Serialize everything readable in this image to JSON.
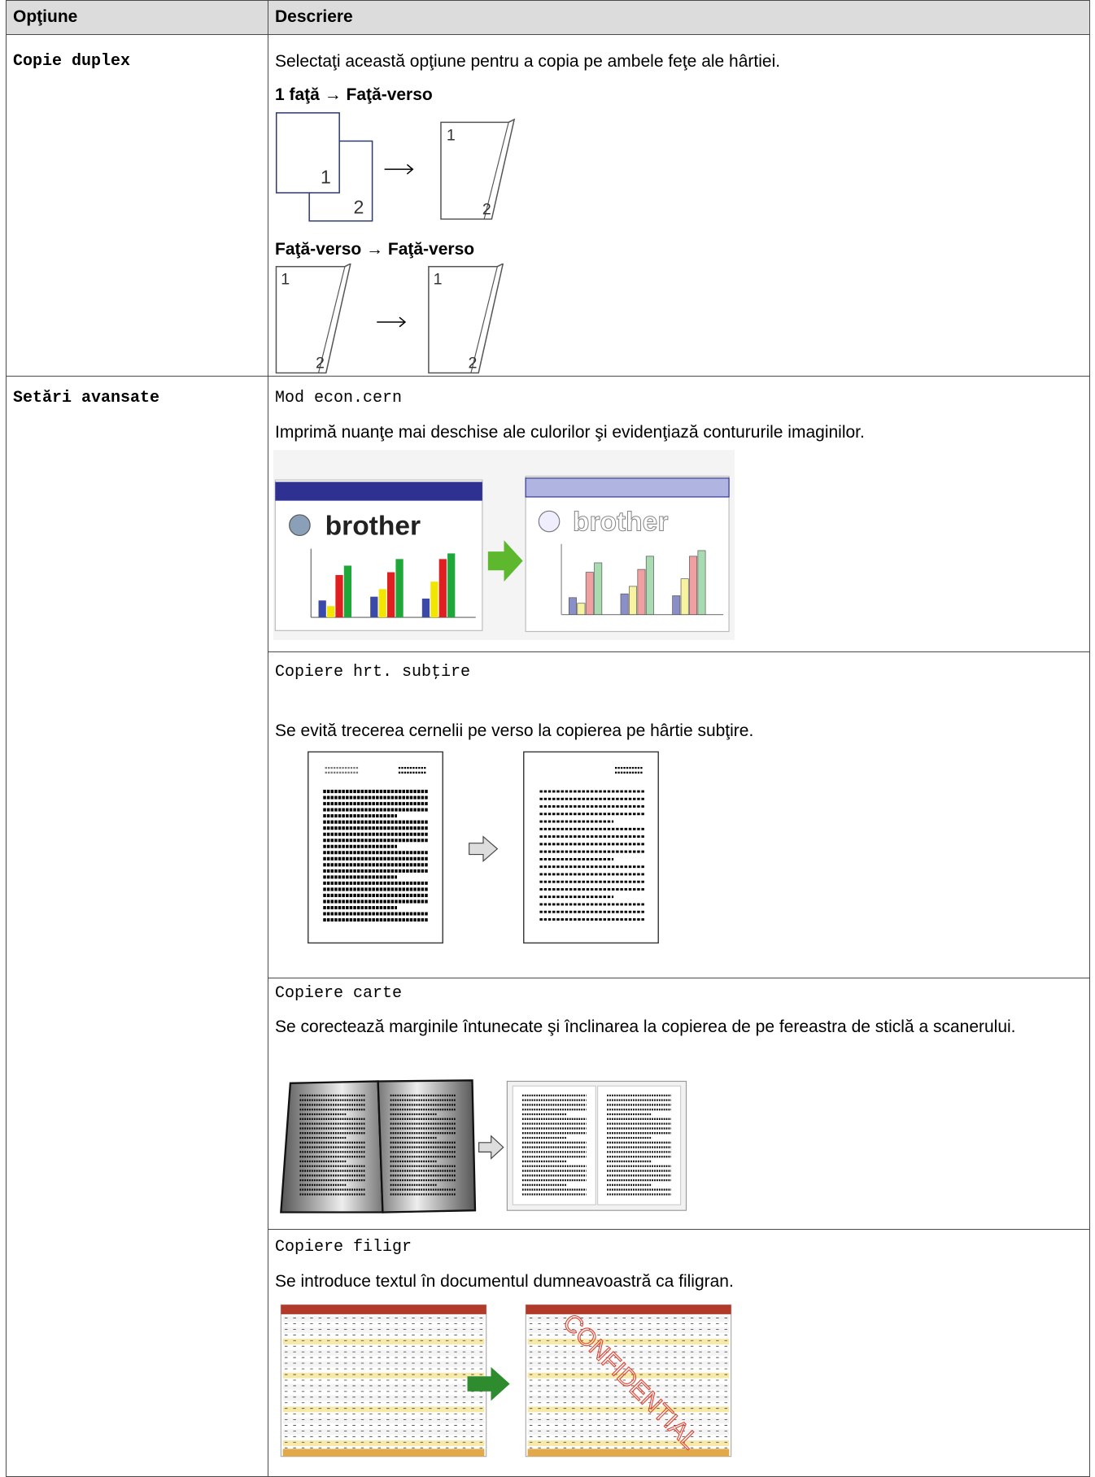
{
  "header": {
    "columns": [
      "Opţiune",
      "Descriere"
    ]
  },
  "rows": [
    {
      "option": "Copie duplex",
      "description": "Selectaţi această opţiune pentru a copia pe ambele feţe ale hârtiei.",
      "subsections": [
        {
          "title": "1 faţă → Faţă-verso"
        },
        {
          "title": "Faţă-verso → Faţă-verso"
        }
      ],
      "page_numbers": [
        "1",
        "2"
      ]
    },
    {
      "option": "Setări avansate",
      "settings": [
        {
          "name": "Mod econ.cern",
          "description": "Imprimă nuanţe mai deschise ale culorilor şi evidenţiază contururile imaginilor.",
          "logo": "brother"
        },
        {
          "name": "Copiere hrt. subţire",
          "description": "Se evită trecerea cernelii pe verso la copierea pe hârtie subţire."
        },
        {
          "name": "Copiere carte",
          "description": "Se corectează marginile întunecate şi înclinarea la copierea de pe fereastra de sticlă a scanerului."
        },
        {
          "name": "Copiere filigr",
          "description": "Se introduce textul în documentul dumneavoastră ca filigran.",
          "watermark": "CONFIDENTIAL"
        }
      ]
    }
  ]
}
